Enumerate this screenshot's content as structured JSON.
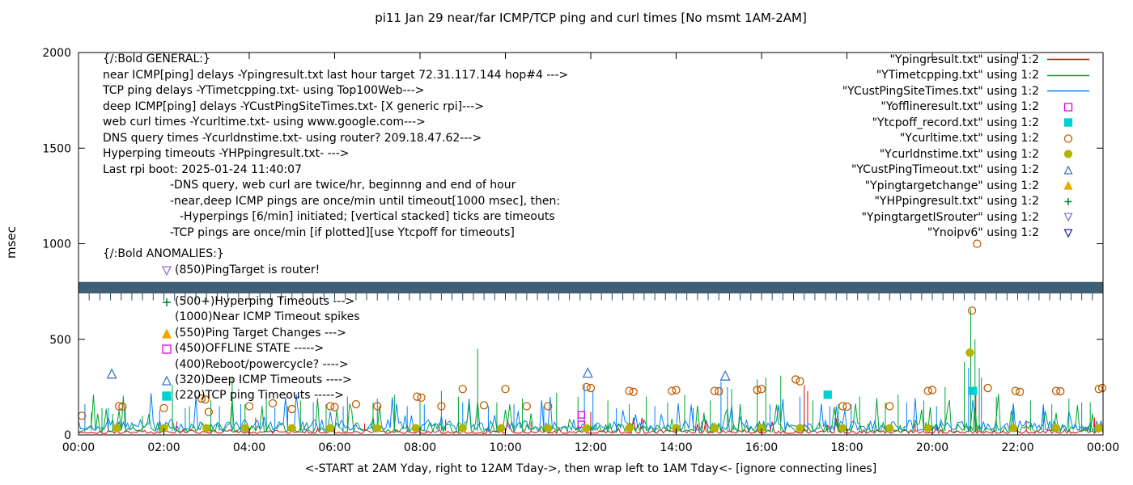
{
  "chart_data": {
    "type": "line+scatter time series (gnuplot)",
    "title": "pi11 Jan 29  near/far ICMP/TCP ping and curl times [No msmt 1AM-2AM]",
    "xlabel": "<-START at 2AM Yday, right to 12AM Tday->, then wrap left to 1AM Tday<- [ignore connecting lines]",
    "ylabel": "msec",
    "xlim": [
      0,
      24
    ],
    "ylim": [
      0,
      2000
    ],
    "xticks": [
      0,
      2,
      4,
      6,
      8,
      10,
      12,
      14,
      16,
      18,
      20,
      22,
      24
    ],
    "xtick_labels": [
      "00:00",
      "02:00",
      "04:00",
      "06:00",
      "08:00",
      "10:00",
      "12:00",
      "14:00",
      "16:00",
      "18:00",
      "20:00",
      "22:00",
      "00:00"
    ],
    "yticks": [
      0,
      500,
      1000,
      1500,
      2000
    ],
    "grid": false,
    "legend_position": "top-right (outside-right aligned)",
    "step": 0.05,
    "lines": [
      {
        "name": "Ypingresult.txt",
        "color": "#e00000",
        "baseline": [
          8,
          28
        ],
        "spike_prob": 0.05,
        "spike_extra": 100,
        "seed": 101,
        "spikes": [
          [
            2.3,
            70
          ],
          [
            4.15,
            90
          ],
          [
            6.7,
            60
          ],
          [
            8.6,
            80
          ],
          [
            10.6,
            70
          ],
          [
            12.0,
            120
          ],
          [
            14.6,
            70
          ],
          [
            17.0,
            260
          ],
          [
            17.08,
            230
          ],
          [
            19.6,
            60
          ],
          [
            20.9,
            250
          ],
          [
            21.02,
            240
          ],
          [
            22.2,
            70
          ],
          [
            23.8,
            90
          ]
        ]
      },
      {
        "name": "YCustPingSiteTimes.txt",
        "color": "#0080ff",
        "baseline": [
          25,
          80
        ],
        "spike_prob": 0.11,
        "spike_extra": 160,
        "seed": 303,
        "spikes": [
          [
            0.15,
            160
          ],
          [
            0.7,
            140
          ],
          [
            1.1,
            150
          ],
          [
            1.9,
            130
          ],
          [
            2.5,
            140
          ],
          [
            3.3,
            150
          ],
          [
            3.8,
            160
          ],
          [
            4.6,
            140
          ],
          [
            5.5,
            170
          ],
          [
            6.2,
            150
          ],
          [
            7.0,
            190
          ],
          [
            7.7,
            150
          ],
          [
            8.1,
            160
          ],
          [
            9.0,
            170
          ],
          [
            9.6,
            150
          ],
          [
            10.2,
            160
          ],
          [
            10.9,
            150
          ],
          [
            11.85,
            260
          ],
          [
            12.05,
            230
          ],
          [
            12.6,
            140
          ],
          [
            13.5,
            150
          ],
          [
            14.4,
            140
          ],
          [
            15.05,
            280
          ],
          [
            15.2,
            250
          ],
          [
            16.2,
            160
          ],
          [
            16.9,
            200
          ],
          [
            17.6,
            150
          ],
          [
            18.1,
            160
          ],
          [
            19.4,
            170
          ],
          [
            20.1,
            150
          ],
          [
            20.85,
            350
          ],
          [
            21.15,
            300
          ],
          [
            21.9,
            150
          ],
          [
            22.6,
            160
          ],
          [
            23.5,
            170
          ]
        ]
      },
      {
        "name": "YTimetcpping.txt",
        "color": "#00a432",
        "baseline": [
          15,
          65
        ],
        "spike_prob": 0.16,
        "spike_extra": 200,
        "seed": 202,
        "spikes": [
          [
            0.3,
            120
          ],
          [
            0.55,
            140
          ],
          [
            0.8,
            110
          ],
          [
            1.5,
            100
          ],
          [
            2.2,
            260
          ],
          [
            2.6,
            150
          ],
          [
            3.1,
            180
          ],
          [
            3.6,
            300
          ],
          [
            3.9,
            160
          ],
          [
            4.4,
            200
          ],
          [
            4.9,
            150
          ],
          [
            5.2,
            180
          ],
          [
            5.8,
            160
          ],
          [
            6.3,
            200
          ],
          [
            6.9,
            170
          ],
          [
            7.4,
            210
          ],
          [
            8.0,
            180
          ],
          [
            8.5,
            230
          ],
          [
            8.9,
            200
          ],
          [
            9.35,
            450
          ],
          [
            9.8,
            170
          ],
          [
            10.4,
            190
          ],
          [
            11.2,
            220
          ],
          [
            11.7,
            200
          ],
          [
            12.4,
            180
          ],
          [
            12.9,
            160
          ],
          [
            13.3,
            200
          ],
          [
            13.8,
            170
          ],
          [
            14.2,
            210
          ],
          [
            14.8,
            180
          ],
          [
            15.3,
            240
          ],
          [
            15.9,
            290
          ],
          [
            16.1,
            300
          ],
          [
            16.45,
            310
          ],
          [
            17.2,
            180
          ],
          [
            17.8,
            160
          ],
          [
            18.3,
            200
          ],
          [
            18.9,
            170
          ],
          [
            19.2,
            210
          ],
          [
            19.8,
            180
          ],
          [
            20.3,
            250
          ],
          [
            20.75,
            380
          ],
          [
            20.9,
            660
          ],
          [
            21.0,
            500
          ],
          [
            21.1,
            350
          ],
          [
            21.5,
            200
          ],
          [
            22.3,
            180
          ],
          [
            22.8,
            160
          ],
          [
            23.2,
            190
          ],
          [
            23.7,
            170
          ]
        ]
      }
    ],
    "scatters": [
      {
        "name": "Yofflineresult.txt",
        "marker": "square-open",
        "color": "#e000e0",
        "size": 8,
        "points": [
          [
            11.78,
            55
          ],
          [
            11.78,
            105
          ]
        ]
      },
      {
        "name": "Ytcpoff_record.txt",
        "marker": "square-filled",
        "color": "#00d0d0",
        "size": 9,
        "points": [
          [
            17.55,
            210
          ],
          [
            20.95,
            230
          ]
        ]
      },
      {
        "name": "Ycurltime.txt",
        "marker": "circle-open",
        "color": "#c05a00",
        "size": 9,
        "points": [
          [
            0.08,
            100
          ],
          [
            0.95,
            150
          ],
          [
            1.03,
            148
          ],
          [
            2.0,
            140
          ],
          [
            2.88,
            190
          ],
          [
            2.97,
            185
          ],
          [
            3.05,
            120
          ],
          [
            4.0,
            150
          ],
          [
            4.55,
            165
          ],
          [
            5.0,
            135
          ],
          [
            5.9,
            150
          ],
          [
            6.0,
            145
          ],
          [
            6.5,
            160
          ],
          [
            7.0,
            150
          ],
          [
            7.93,
            200
          ],
          [
            8.03,
            195
          ],
          [
            8.5,
            150
          ],
          [
            9.0,
            240
          ],
          [
            9.5,
            155
          ],
          [
            10.0,
            240
          ],
          [
            10.5,
            150
          ],
          [
            11.0,
            150
          ],
          [
            11.9,
            250
          ],
          [
            12.0,
            245
          ],
          [
            12.9,
            230
          ],
          [
            13.0,
            225
          ],
          [
            13.9,
            230
          ],
          [
            14.0,
            235
          ],
          [
            14.9,
            230
          ],
          [
            15.0,
            228
          ],
          [
            15.9,
            235
          ],
          [
            16.0,
            240
          ],
          [
            16.8,
            290
          ],
          [
            16.9,
            280
          ],
          [
            17.9,
            150
          ],
          [
            18.0,
            148
          ],
          [
            19.0,
            150
          ],
          [
            19.9,
            230
          ],
          [
            20.0,
            235
          ],
          [
            20.93,
            650
          ],
          [
            21.05,
            1000
          ],
          [
            21.3,
            245
          ],
          [
            21.95,
            230
          ],
          [
            22.05,
            225
          ],
          [
            22.9,
            230
          ],
          [
            23.0,
            228
          ],
          [
            23.9,
            240
          ],
          [
            23.98,
            245
          ]
        ]
      },
      {
        "name": "Ycurldnstime.txt",
        "marker": "circle-filled",
        "color": "#b4b400",
        "size": 9,
        "points": [
          [
            0.9,
            35
          ],
          [
            2.0,
            35
          ],
          [
            3.0,
            35
          ],
          [
            3.9,
            35
          ],
          [
            5.0,
            35
          ],
          [
            5.9,
            35
          ],
          [
            7.0,
            35
          ],
          [
            7.9,
            35
          ],
          [
            9.0,
            35
          ],
          [
            9.9,
            35
          ],
          [
            11.0,
            35
          ],
          [
            11.9,
            35
          ],
          [
            12.9,
            35
          ],
          [
            14.0,
            35
          ],
          [
            14.9,
            35
          ],
          [
            16.0,
            35
          ],
          [
            16.9,
            35
          ],
          [
            17.9,
            35
          ],
          [
            19.0,
            35
          ],
          [
            19.9,
            35
          ],
          [
            20.88,
            430
          ],
          [
            21.9,
            35
          ],
          [
            22.9,
            35
          ],
          [
            23.9,
            35
          ]
        ]
      },
      {
        "name": "YCustPingTimeout.txt",
        "marker": "triangle-up-open",
        "color": "#3878c8",
        "size": 11,
        "points": [
          [
            0.78,
            320
          ],
          [
            11.93,
            325
          ],
          [
            15.15,
            310
          ]
        ]
      },
      {
        "name": "Ypingtargetchange",
        "marker": "triangle-up-filled",
        "color": "#f0a500",
        "size": 11,
        "points": []
      },
      {
        "name": "YHPpingresult.txt",
        "marker": "plus",
        "color": "#00802c",
        "size": 10,
        "points": []
      },
      {
        "name": "YpingtargetISrouter",
        "marker": "triangle-down-open",
        "color": "#9470db",
        "size": 11,
        "points": []
      },
      {
        "name": "Ynoipv6",
        "marker": "triangle-down-open",
        "color": "#26269c",
        "size": 11,
        "points": []
      }
    ],
    "noipv6_band": {
      "y_low": 740,
      "y_high": 800,
      "color": "#3e5f76",
      "note": "dense overlapping Ynoipv6 markers form a solid horizontal band across full width"
    },
    "hyperping_tick_row": {
      "y_top": 740,
      "y_bottom": 704,
      "spacing_hours": 0.25,
      "color": "#2c4d5c",
      "note": "vertical stacked ticks = hyperping timeouts, hanging below the band"
    }
  },
  "legend": {
    "items": [
      {
        "label": "\"Ypingresult.txt\" using 1:2",
        "marker": "line",
        "color": "#e00000"
      },
      {
        "label": "\"YTimetcpping.txt\" using 1:2",
        "marker": "line",
        "color": "#00a432"
      },
      {
        "label": "\"YCustPingSiteTimes.txt\" using 1:2",
        "marker": "line",
        "color": "#0080ff"
      },
      {
        "label": "\"Yofflineresult.txt\" using 1:2",
        "marker": "square-open",
        "color": "#e000e0"
      },
      {
        "label": "\"Ytcpoff_record.txt\" using 1:2",
        "marker": "square-filled",
        "color": "#00d0d0"
      },
      {
        "label": "\"Ycurltime.txt\" using 1:2",
        "marker": "circle-open",
        "color": "#c05a00"
      },
      {
        "label": "\"Ycurldnstime.txt\" using 1:2",
        "marker": "circle-filled",
        "color": "#b4b400"
      },
      {
        "label": "\"YCustPingTimeout.txt\" using 1:2",
        "marker": "triangle-up-open",
        "color": "#3878c8"
      },
      {
        "label": "\"Ypingtargetchange\" using 1:2",
        "marker": "triangle-up-filled",
        "color": "#f0a500"
      },
      {
        "label": "\"YHPpingresult.txt\" using 1:2",
        "marker": "plus",
        "color": "#00802c"
      },
      {
        "label": "\"YpingtargetISrouter\" using 1:2",
        "marker": "triangle-down-open",
        "color": "#9470db"
      },
      {
        "label": "\"Ynoipv6\" using 1:2",
        "marker": "triangle-down-open",
        "color": "#26269c"
      }
    ]
  },
  "general": {
    "heading": "{/:Bold GENERAL:}",
    "lines": [
      {
        "text": "near ICMP[ping] delays -Ypingresult.txt last hour target 72.31.117.144 hop#4 --->",
        "indent": 0
      },
      {
        "text": "TCP ping delays -YTimetcpping.txt- using Top100Web--->",
        "indent": 0
      },
      {
        "text": "deep ICMP[ping] delays -YCustPingSiteTimes.txt- [X generic rpi]--->",
        "indent": 0
      },
      {
        "text": "web curl times -Ycurltime.txt- using www.google.com--->",
        "indent": 0
      },
      {
        "text": "DNS query times -Ycurldnstime.txt- using router? 209.18.47.62--->",
        "indent": 0
      },
      {
        "text": "Hyperping timeouts -YHPpingresult.txt- --->",
        "indent": 0
      },
      {
        "text": "Last rpi boot: 2025-01-24 11:40:07",
        "indent": 0
      },
      {
        "text": "-DNS query, web curl are twice/hr, beginnng and end of hour",
        "indent": 1
      },
      {
        "text": "-near,deep ICMP pings are once/min until timeout[1000 msec], then:",
        "indent": 1
      },
      {
        "text": "-Hyperpings [6/min] initiated; [vertical stacked] ticks are timeouts",
        "indent": 2
      },
      {
        "text": "-TCP pings are once/min [if plotted][use Ytcpoff for timeouts]",
        "indent": 1
      }
    ]
  },
  "anomalies": {
    "heading": "{/:Bold ANOMALIES:}",
    "items": [
      {
        "marker": "triangle-down-open",
        "color": "#9470db",
        "text": "(850)PingTarget is router!",
        "hidden": false
      },
      {
        "marker": null,
        "color": null,
        "text": "",
        "hidden": true
      },
      {
        "marker": "plus",
        "color": "#00802c",
        "text": "(500+)Hyperping Timeouts --->",
        "hidden": false
      },
      {
        "marker": null,
        "color": null,
        "text": "(1000)Near ICMP Timeout spikes",
        "hidden": false
      },
      {
        "marker": "triangle-up-filled",
        "color": "#f0a500",
        "text": "(550)Ping Target Changes --->",
        "hidden": false
      },
      {
        "marker": "square-open",
        "color": "#e000e0",
        "text": "(450)OFFLINE STATE ----->",
        "hidden": false
      },
      {
        "marker": null,
        "color": null,
        "text": "(400)Reboot/powercycle? ---->",
        "hidden": false
      },
      {
        "marker": "triangle-up-open",
        "color": "#3878c8",
        "text": "(320)Deep ICMP Timeouts ---->",
        "hidden": false
      },
      {
        "marker": "square-filled",
        "color": "#00d0d0",
        "text": "(220)TCP ping Timeouts ----->",
        "hidden": false
      }
    ]
  }
}
